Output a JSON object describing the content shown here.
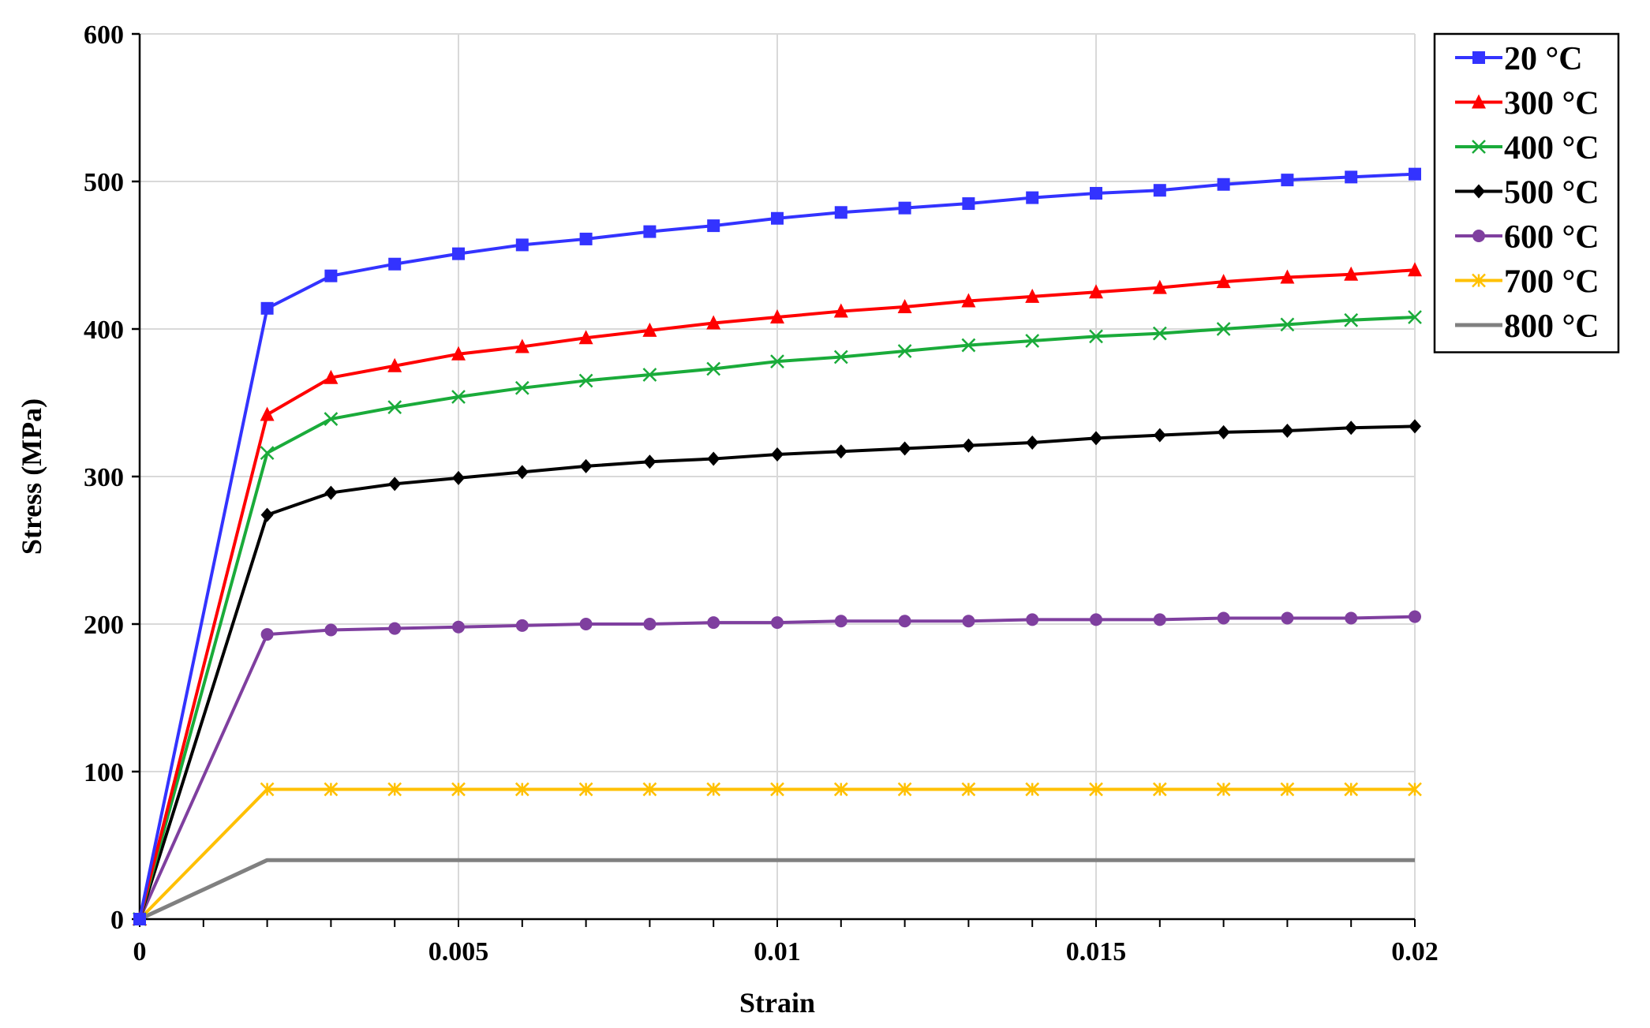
{
  "chart_data": {
    "type": "line",
    "title": "",
    "xlabel": "Strain",
    "ylabel": "Stress (MPa)",
    "xlim": [
      0,
      0.02
    ],
    "ylim": [
      0,
      600
    ],
    "x_ticks": [
      0,
      0.005,
      0.01,
      0.015,
      0.02
    ],
    "x_tick_labels": [
      "0",
      "0.005",
      "0.01",
      "0.015",
      "0.02"
    ],
    "y_ticks": [
      0,
      100,
      200,
      300,
      400,
      500,
      600
    ],
    "y_tick_labels": [
      "0",
      "100",
      "200",
      "300",
      "400",
      "500",
      "600"
    ],
    "grid": true,
    "legend_position": "top-right (outside plot)",
    "x": [
      0,
      0.002,
      0.003,
      0.004,
      0.005,
      0.006,
      0.007,
      0.008,
      0.009,
      0.01,
      0.011,
      0.012,
      0.013,
      0.014,
      0.015,
      0.016,
      0.017,
      0.018,
      0.019,
      0.02
    ],
    "series": [
      {
        "name": "20 °C",
        "color": "#3333ff",
        "marker": "square",
        "values": [
          0,
          414,
          436,
          444,
          451,
          457,
          461,
          466,
          470,
          475,
          479,
          482,
          485,
          489,
          492,
          494,
          498,
          501,
          503,
          505
        ]
      },
      {
        "name": "300 °C",
        "color": "#ff0000",
        "marker": "triangle",
        "values": [
          0,
          342,
          367,
          375,
          383,
          388,
          394,
          399,
          404,
          408,
          412,
          415,
          419,
          422,
          425,
          428,
          432,
          435,
          437,
          440
        ]
      },
      {
        "name": "400 °C",
        "color": "#1aab3a",
        "marker": "x",
        "values": [
          0,
          316,
          339,
          347,
          354,
          360,
          365,
          369,
          373,
          378,
          381,
          385,
          389,
          392,
          395,
          397,
          400,
          403,
          406,
          408
        ]
      },
      {
        "name": "500 °C",
        "color": "#000000",
        "marker": "diamond",
        "values": [
          0,
          274,
          289,
          295,
          299,
          303,
          307,
          310,
          312,
          315,
          317,
          319,
          321,
          323,
          326,
          328,
          330,
          331,
          333,
          334
        ]
      },
      {
        "name": "600 °C",
        "color": "#7f3f9f",
        "marker": "circle",
        "values": [
          0,
          193,
          196,
          197,
          198,
          199,
          200,
          200,
          201,
          201,
          202,
          202,
          202,
          203,
          203,
          203,
          204,
          204,
          204,
          205
        ]
      },
      {
        "name": "700 °C",
        "color": "#ffc000",
        "marker": "asterisk",
        "values": [
          0,
          88,
          88,
          88,
          88,
          88,
          88,
          88,
          88,
          88,
          88,
          88,
          88,
          88,
          88,
          88,
          88,
          88,
          88,
          88
        ]
      },
      {
        "name": "800 °C",
        "color": "#808080",
        "marker": "none",
        "values": [
          0,
          40,
          40,
          40,
          40,
          40,
          40,
          40,
          40,
          40,
          40,
          40,
          40,
          40,
          40,
          40,
          40,
          40,
          40,
          40
        ]
      }
    ]
  }
}
